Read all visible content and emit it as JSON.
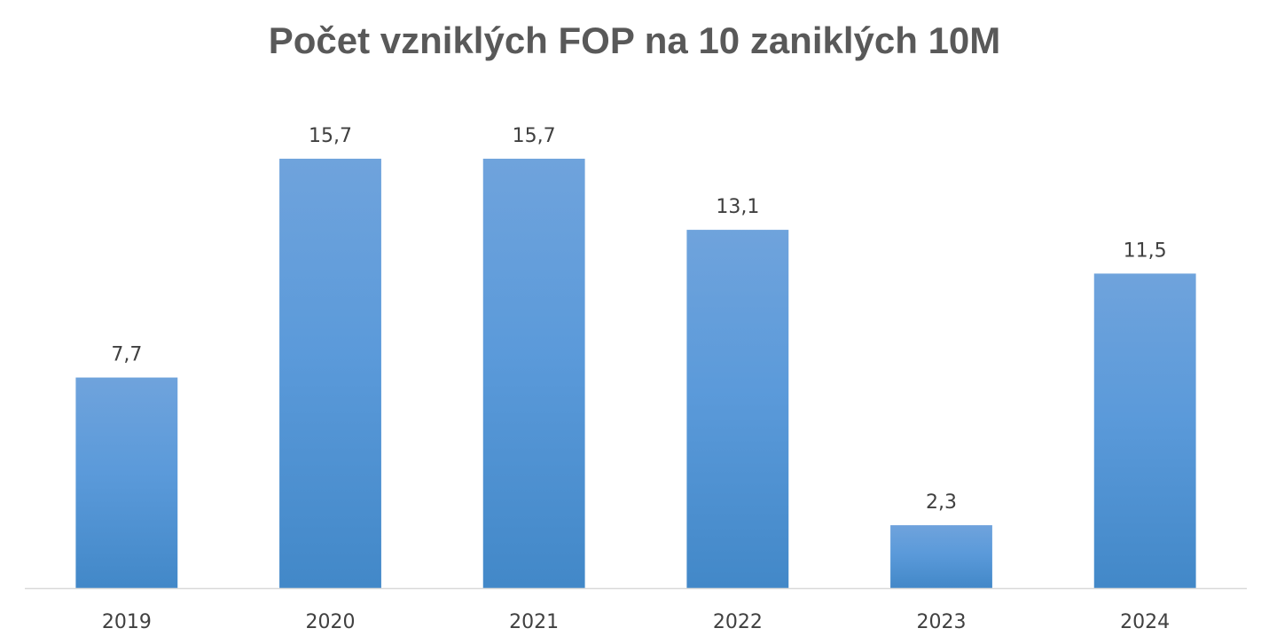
{
  "colors": {
    "bar_top": "#6fa3dc",
    "bar_bottom": "#4288c8",
    "axis": "#d9d9d9",
    "text": "#404040",
    "title": "#595959"
  },
  "chart_data": {
    "type": "bar",
    "title": "Počet vzniklých FOP na 10 zaniklých 10M",
    "xlabel": "",
    "ylabel": "",
    "categories": [
      "2019",
      "2020",
      "2021",
      "2022",
      "2023",
      "2024"
    ],
    "values": [
      7.7,
      15.7,
      15.7,
      13.1,
      2.3,
      11.5
    ],
    "value_labels": [
      "7,7",
      "15,7",
      "15,7",
      "13,1",
      "2,3",
      "11,5"
    ],
    "ylim": [
      0,
      18
    ],
    "grid": false,
    "legend": "none"
  }
}
